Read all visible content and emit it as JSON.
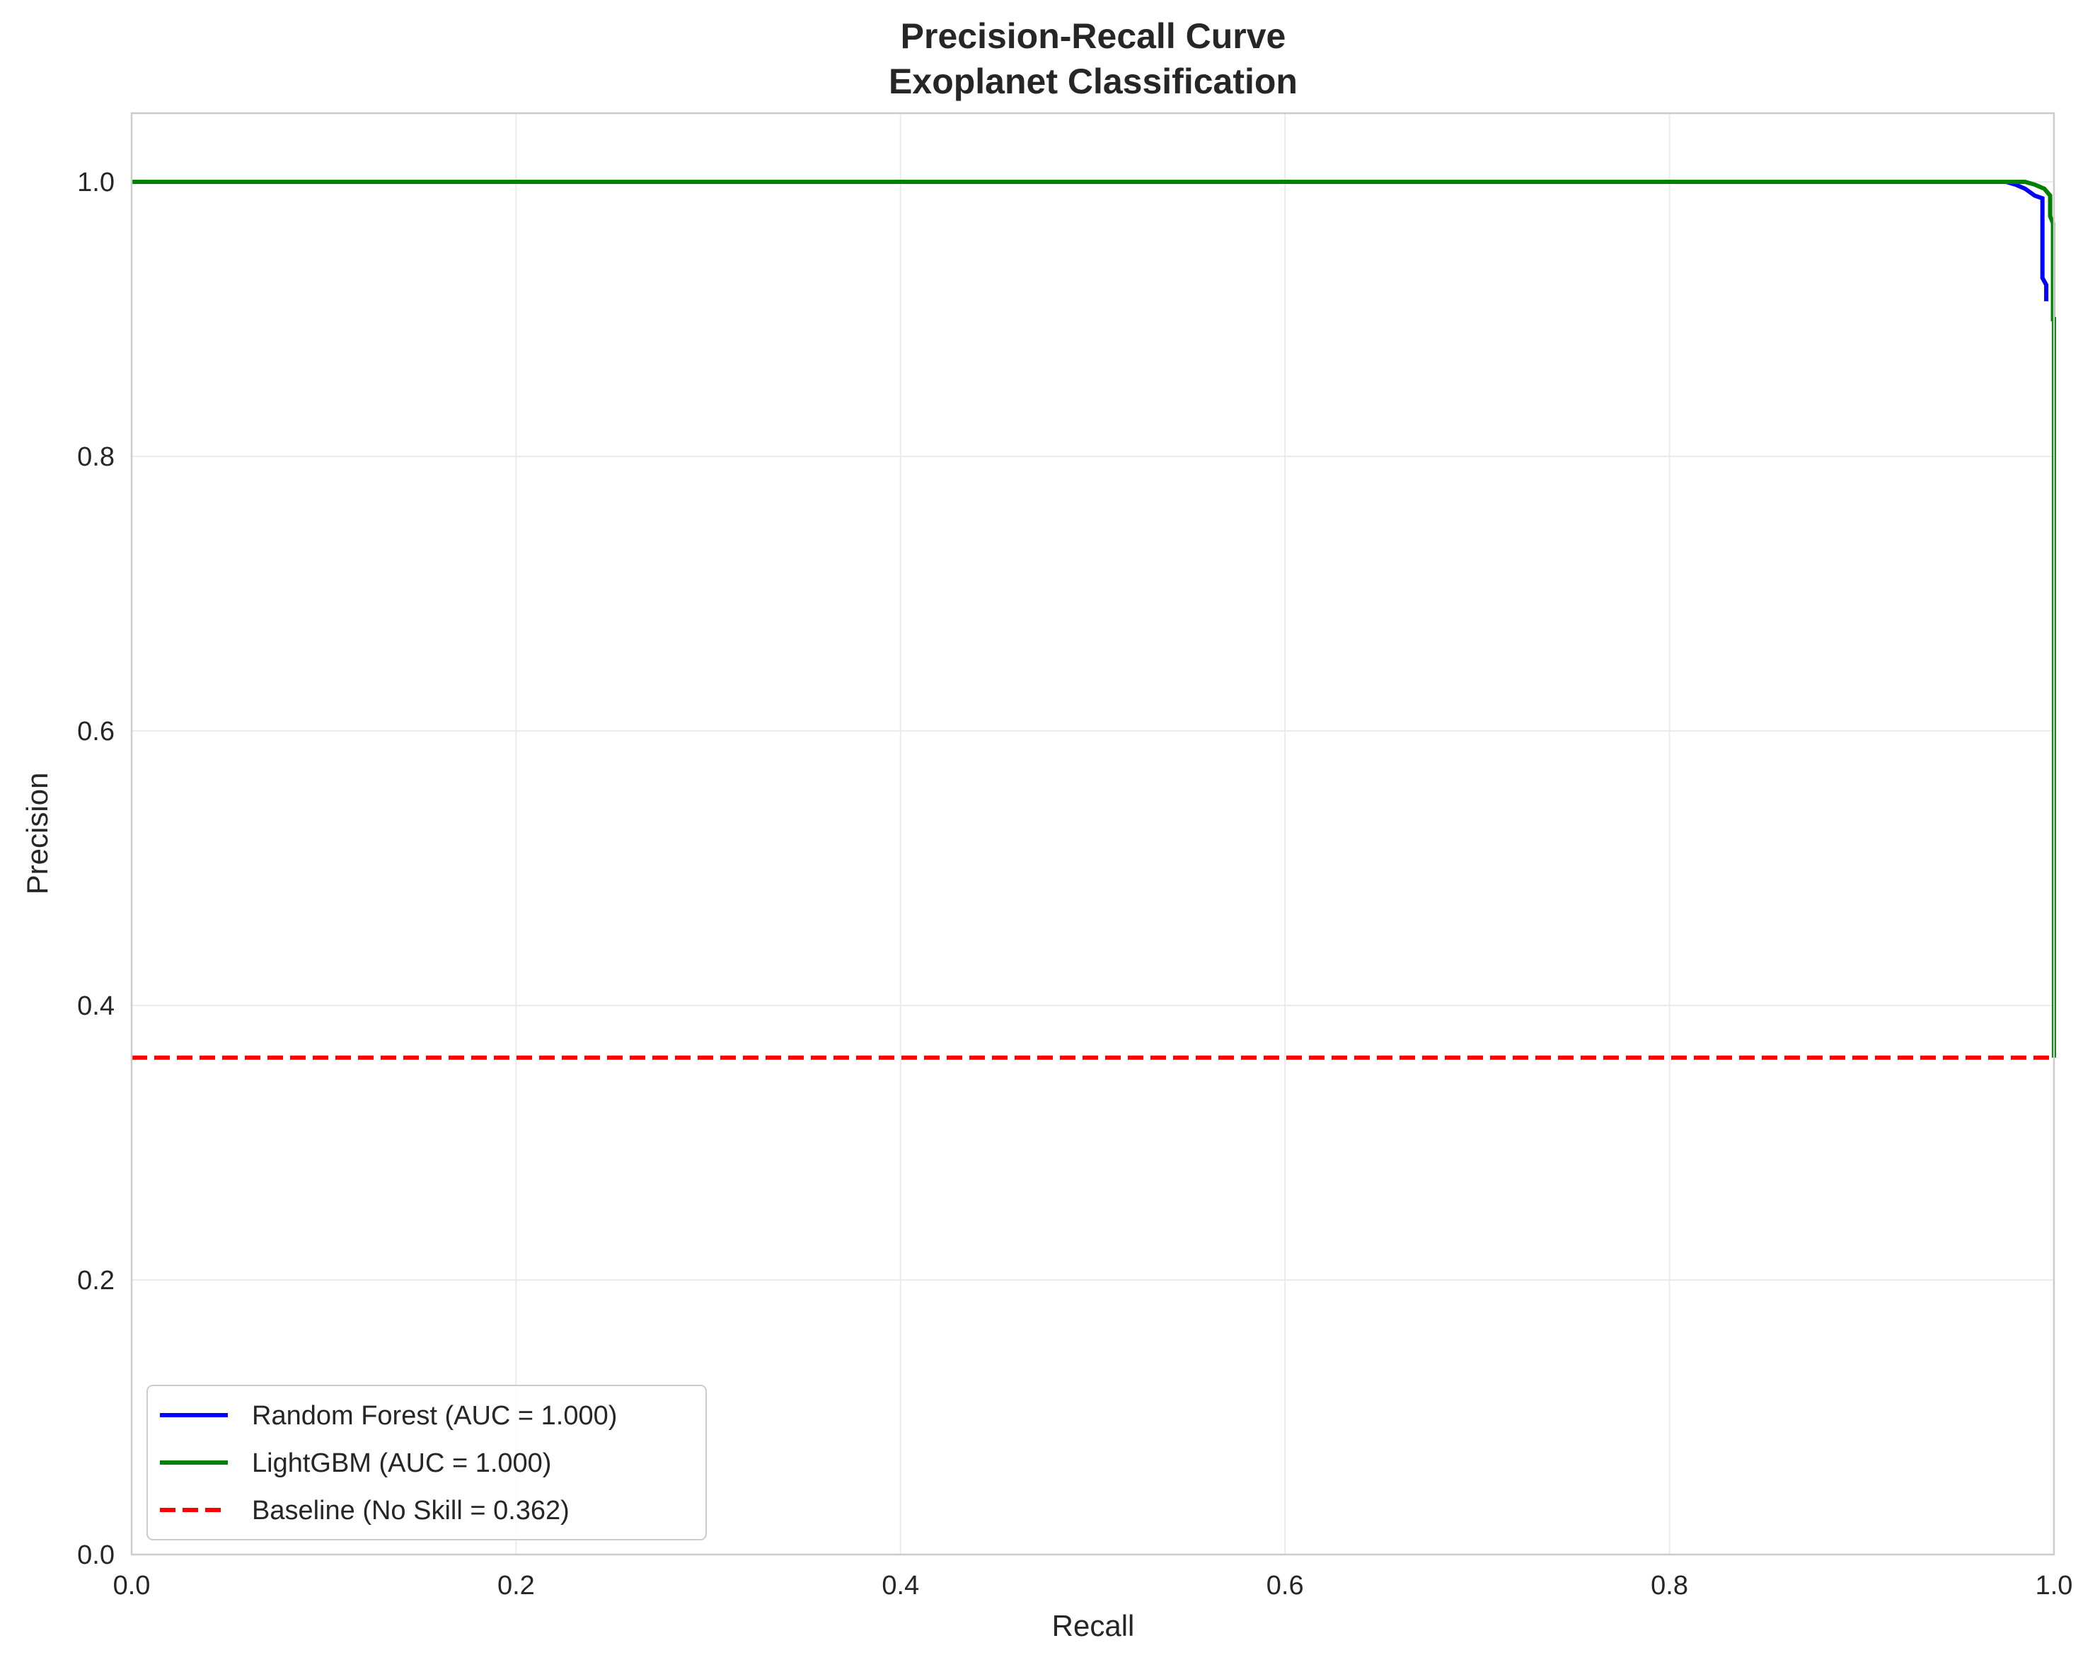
{
  "chart_data": {
    "type": "line",
    "title": "Precision-Recall Curve",
    "subtitle": "Exoplanet Classification",
    "xlabel": "Recall",
    "ylabel": "Precision",
    "xlim": [
      0.0,
      1.0
    ],
    "ylim": [
      0.0,
      1.05
    ],
    "xticks": [
      "0.0",
      "0.2",
      "0.4",
      "0.6",
      "0.8",
      "1.0"
    ],
    "yticks": [
      "0.0",
      "0.2",
      "0.4",
      "0.6",
      "0.8",
      "1.0"
    ],
    "grid": true,
    "legend_position": "lower-left",
    "series": [
      {
        "name": "Random Forest (AUC = 1.000)",
        "color": "#0000ff",
        "style": "solid",
        "points": [
          [
            0.0,
            1.0
          ],
          [
            0.975,
            1.0
          ],
          [
            0.98,
            0.998
          ],
          [
            0.985,
            0.995
          ],
          [
            0.99,
            0.99
          ],
          [
            0.994,
            0.988
          ],
          [
            0.994,
            0.93
          ],
          [
            0.996,
            0.925
          ],
          [
            0.996,
            0.913
          ]
        ]
      },
      {
        "name": "LightGBM (AUC = 1.000)",
        "color": "#008000",
        "style": "solid",
        "points": [
          [
            0.0,
            1.0
          ],
          [
            0.985,
            1.0
          ],
          [
            0.99,
            0.998
          ],
          [
            0.995,
            0.995
          ],
          [
            0.998,
            0.99
          ],
          [
            0.998,
            0.975
          ],
          [
            0.9995,
            0.97
          ],
          [
            0.9995,
            0.9
          ],
          [
            1.0,
            0.9
          ],
          [
            1.0,
            0.362
          ]
        ]
      },
      {
        "name": "Baseline (No Skill = 0.362)",
        "color": "#ff0000",
        "style": "dashed",
        "points": [
          [
            0.0,
            0.362
          ],
          [
            1.0,
            0.362
          ]
        ]
      }
    ]
  }
}
